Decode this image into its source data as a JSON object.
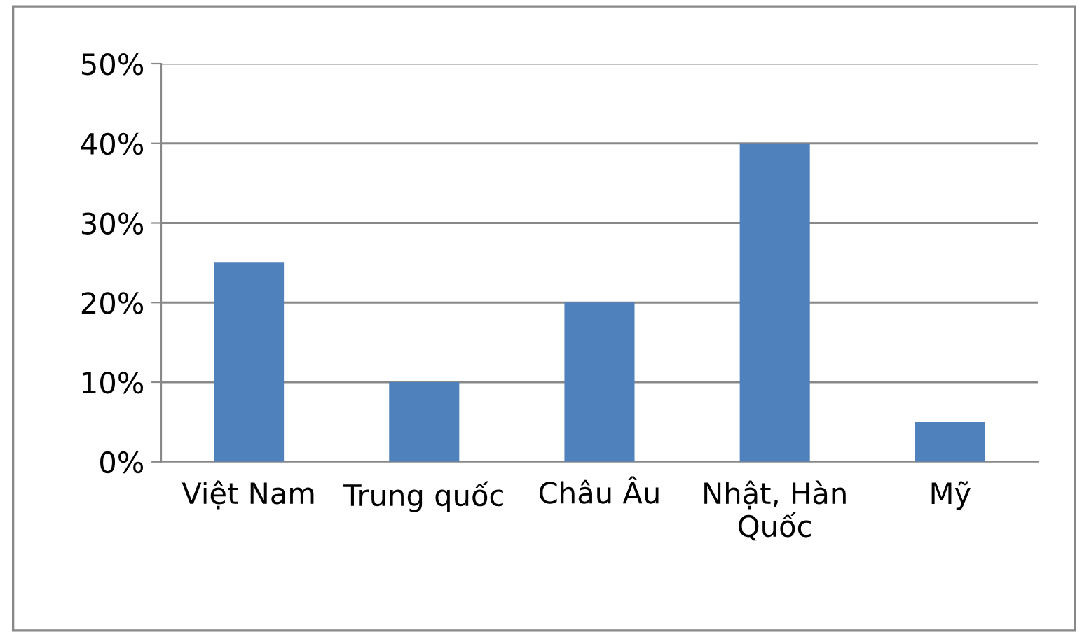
{
  "chart_data": {
    "type": "bar",
    "categories": [
      "Việt Nam",
      "Trung quốc",
      "Châu Âu",
      "Nhật, Hàn\nQuốc",
      "Mỹ"
    ],
    "values": [
      25,
      10,
      20,
      40,
      5
    ],
    "color": "#4f81bd",
    "ylim": [
      0,
      50
    ],
    "yticks": [
      {
        "value": 0,
        "label": "0%"
      },
      {
        "value": 10,
        "label": "10%"
      },
      {
        "value": 20,
        "label": "20%"
      },
      {
        "value": 30,
        "label": "30%"
      },
      {
        "value": 40,
        "label": "40%"
      },
      {
        "value": 50,
        "label": "50%"
      }
    ],
    "grid": "y",
    "legend": false
  }
}
